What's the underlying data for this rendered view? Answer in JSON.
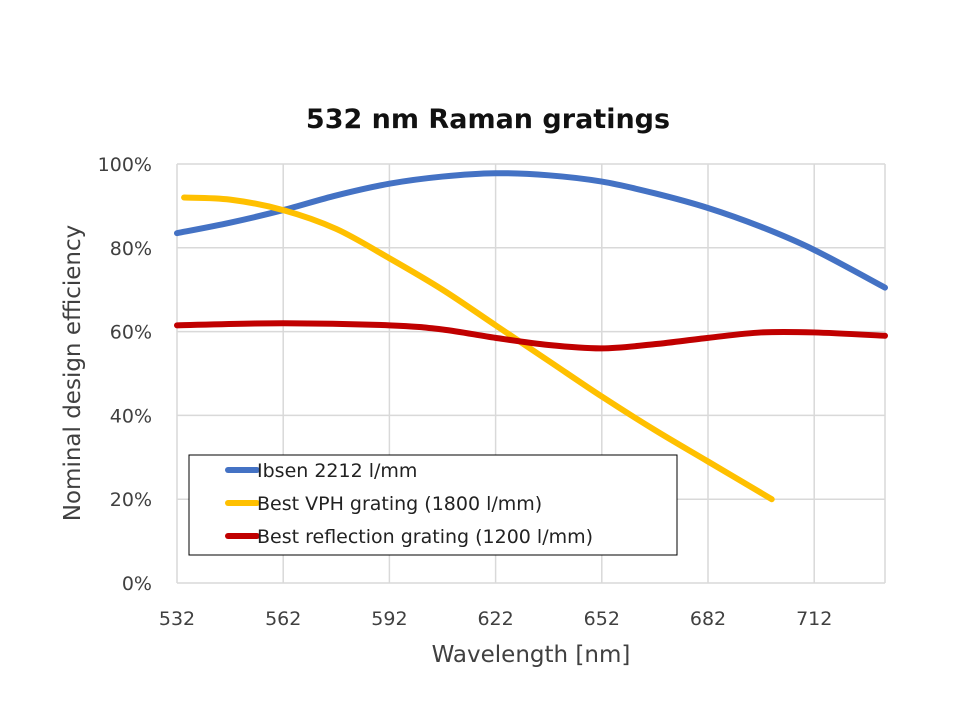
{
  "chart_data": {
    "type": "line",
    "title": "532 nm Raman gratings",
    "xlabel": "Wavelength [nm]",
    "ylabel": "Nominal design efficiency",
    "xlim": [
      532,
      732
    ],
    "ylim": [
      0,
      100
    ],
    "x_ticks": [
      "532",
      "562",
      "592",
      "622",
      "652",
      "682",
      "712"
    ],
    "y_ticks": [
      "0%",
      "20%",
      "40%",
      "60%",
      "80%",
      "100%"
    ],
    "grid": true,
    "legend_position": "bottom-left",
    "series": [
      {
        "name": "Ibsen 2212 l/mm",
        "color": "#4472C4",
        "x": [
          532,
          547,
          562,
          577,
          592,
          607,
          622,
          637,
          652,
          667,
          682,
          697,
          712,
          732
        ],
        "y": [
          83.5,
          86,
          89,
          92.5,
          95.3,
          97,
          97.8,
          97.3,
          95.8,
          93,
          89.5,
          85,
          79.5,
          70.5
        ]
      },
      {
        "name": "Best VPH grating (1800 l/mm)",
        "color": "#FFC000",
        "x": [
          534,
          547,
          562,
          577,
          592,
          607,
          622,
          637,
          652,
          667,
          682,
          700
        ],
        "y": [
          92,
          91.5,
          89,
          84.5,
          77.5,
          70,
          61.5,
          53,
          44.5,
          36.5,
          29,
          20
        ]
      },
      {
        "name": "Best reflection grating (1200 l/mm)",
        "color": "#C00000",
        "x": [
          532,
          562,
          592,
          607,
          622,
          637,
          652,
          667,
          682,
          697,
          712,
          732
        ],
        "y": [
          61.5,
          62,
          61.5,
          60.5,
          58.5,
          56.8,
          56,
          57,
          58.5,
          59.8,
          59.8,
          59
        ]
      }
    ]
  }
}
